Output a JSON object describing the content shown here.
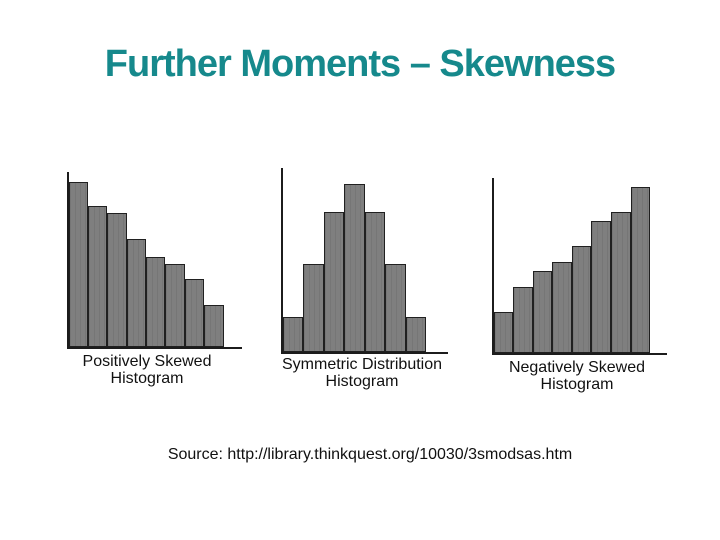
{
  "slide": {
    "title": "Further Moments – Skewness",
    "source": "Source: http://library.thinkquest.org/10030/3smodsas.htm"
  },
  "colors": {
    "background": "#FFFFFF",
    "title": "#16898C",
    "axis": "#1C1C1C",
    "bar_fill": "#7F7F7F",
    "bar_border": "#202020",
    "label": "#111111"
  },
  "chart_data": [
    {
      "type": "bar",
      "title": "Positively Skewed Histogram",
      "label_lines": [
        "Positively Skewed",
        "Histogram"
      ],
      "values": [
        165,
        141,
        134,
        108,
        90,
        83,
        68,
        42
      ],
      "units": "relative bar height (axes unlabeled, no ticks)",
      "xlabel": "",
      "ylabel": "",
      "ylim": [
        0,
        175
      ],
      "grid": false,
      "legend": false
    },
    {
      "type": "bar",
      "title": "Symmetric Distribution Histogram",
      "label_lines": [
        "Symmetric Distribution",
        "Histogram"
      ],
      "values": [
        35,
        88,
        140,
        168,
        140,
        88,
        35
      ],
      "units": "relative bar height (axes unlabeled, no ticks)",
      "xlabel": "",
      "ylabel": "",
      "ylim": [
        0,
        184
      ],
      "grid": false,
      "legend": false
    },
    {
      "type": "bar",
      "title": "Negatively Skewed Histogram",
      "label_lines": [
        "Negatively Skewed",
        "Histogram"
      ],
      "values": [
        41,
        66,
        82,
        91,
        107,
        132,
        141,
        166
      ],
      "units": "relative bar height (axes unlabeled, no ticks)",
      "xlabel": "",
      "ylabel": "",
      "ylim": [
        0,
        175
      ],
      "grid": false,
      "legend": false
    }
  ]
}
